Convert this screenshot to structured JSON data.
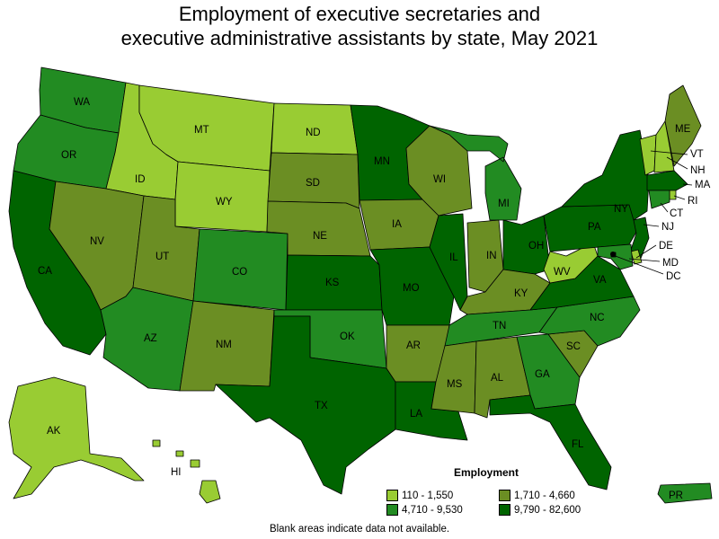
{
  "title": {
    "line1": "Employment of executive secretaries and",
    "line2": "executive administrative assistants by state, May 2021"
  },
  "colors": {
    "bin1": "#99cc33",
    "bin2": "#6b8e23",
    "bin3": "#228b22",
    "bin4": "#006400"
  },
  "legend": {
    "title": "Employment",
    "items": [
      {
        "label": "110 - 1,550",
        "bin": "bin1"
      },
      {
        "label": "1,710 - 4,660",
        "bin": "bin2"
      },
      {
        "label": "4,710 - 9,530",
        "bin": "bin3"
      },
      {
        "label": "9,790 - 82,600",
        "bin": "bin4"
      }
    ]
  },
  "footer": "Blank areas indicate data not available.",
  "states": [
    {
      "abbr": "WA",
      "bin": "bin3"
    },
    {
      "abbr": "OR",
      "bin": "bin3"
    },
    {
      "abbr": "CA",
      "bin": "bin4"
    },
    {
      "abbr": "ID",
      "bin": "bin1"
    },
    {
      "abbr": "NV",
      "bin": "bin2"
    },
    {
      "abbr": "MT",
      "bin": "bin1"
    },
    {
      "abbr": "WY",
      "bin": "bin1"
    },
    {
      "abbr": "UT",
      "bin": "bin2"
    },
    {
      "abbr": "AZ",
      "bin": "bin3"
    },
    {
      "abbr": "CO",
      "bin": "bin3"
    },
    {
      "abbr": "NM",
      "bin": "bin2"
    },
    {
      "abbr": "ND",
      "bin": "bin1"
    },
    {
      "abbr": "SD",
      "bin": "bin2"
    },
    {
      "abbr": "NE",
      "bin": "bin2"
    },
    {
      "abbr": "KS",
      "bin": "bin4"
    },
    {
      "abbr": "OK",
      "bin": "bin3"
    },
    {
      "abbr": "TX",
      "bin": "bin4"
    },
    {
      "abbr": "MN",
      "bin": "bin4"
    },
    {
      "abbr": "IA",
      "bin": "bin2"
    },
    {
      "abbr": "MO",
      "bin": "bin4"
    },
    {
      "abbr": "AR",
      "bin": "bin2"
    },
    {
      "abbr": "LA",
      "bin": "bin4"
    },
    {
      "abbr": "WI",
      "bin": "bin2"
    },
    {
      "abbr": "IL",
      "bin": "bin4"
    },
    {
      "abbr": "MI",
      "bin": "bin3"
    },
    {
      "abbr": "IN",
      "bin": "bin2"
    },
    {
      "abbr": "OH",
      "bin": "bin4"
    },
    {
      "abbr": "KY",
      "bin": "bin2"
    },
    {
      "abbr": "TN",
      "bin": "bin3"
    },
    {
      "abbr": "MS",
      "bin": "bin2"
    },
    {
      "abbr": "AL",
      "bin": "bin2"
    },
    {
      "abbr": "GA",
      "bin": "bin3"
    },
    {
      "abbr": "FL",
      "bin": "bin4"
    },
    {
      "abbr": "SC",
      "bin": "bin2"
    },
    {
      "abbr": "NC",
      "bin": "bin3"
    },
    {
      "abbr": "VA",
      "bin": "bin4"
    },
    {
      "abbr": "WV",
      "bin": "bin1"
    },
    {
      "abbr": "PA",
      "bin": "bin4"
    },
    {
      "abbr": "NY",
      "bin": "bin4"
    },
    {
      "abbr": "VT",
      "bin": "bin1"
    },
    {
      "abbr": "NH",
      "bin": "bin1"
    },
    {
      "abbr": "ME",
      "bin": "bin2"
    },
    {
      "abbr": "MA",
      "bin": "bin4"
    },
    {
      "abbr": "RI",
      "bin": "bin1"
    },
    {
      "abbr": "CT",
      "bin": "bin3"
    },
    {
      "abbr": "NJ",
      "bin": "bin4"
    },
    {
      "abbr": "DE",
      "bin": "bin1"
    },
    {
      "abbr": "MD",
      "bin": "bin3"
    },
    {
      "abbr": "DC",
      "bin": "bin4"
    },
    {
      "abbr": "AK",
      "bin": "bin1"
    },
    {
      "abbr": "HI",
      "bin": "bin1"
    },
    {
      "abbr": "PR",
      "bin": "bin3"
    }
  ]
}
